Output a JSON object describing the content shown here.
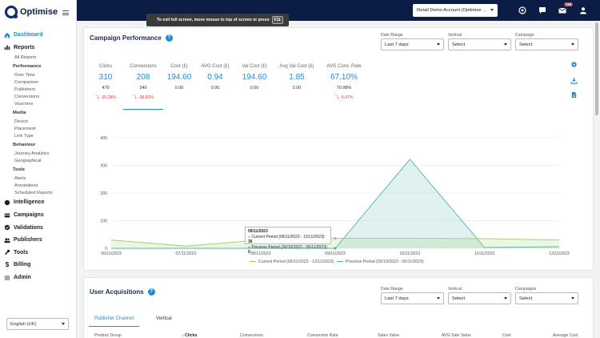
{
  "brand": {
    "name": "Optimise"
  },
  "sidebar": {
    "dashboard": "Dashboard",
    "reports": "Reports",
    "all_reports": "All Reports",
    "performance_head": "Performance",
    "performance": [
      "Over Time",
      "Comparison",
      "Publishers",
      "Conversions",
      "Vouchers"
    ],
    "media_head": "Media",
    "media": [
      "Device",
      "Placement",
      "Link Type"
    ],
    "behaviour_head": "Behaviour",
    "behaviour": [
      "Journey Analytics",
      "Geographical"
    ],
    "tools_head": "Tools",
    "tools": [
      "Alerts",
      "Annotations",
      "Scheduled Reports"
    ],
    "main": [
      "Intelligence",
      "Campaigns",
      "Validations",
      "Publishers",
      "Tools",
      "Billing",
      "Admin"
    ],
    "language": "English (UK)"
  },
  "topbar": {
    "fullscreen_msg": "To exit full screen, move mouse to top of screen or press",
    "fullscreen_key": "F11",
    "account": "Retail Demo Account (Optimise ...",
    "badge_count": "118"
  },
  "campaign": {
    "title": "Campaign Performance",
    "filters": [
      {
        "label": "Date Range",
        "value": "Last 7 days"
      },
      {
        "label": "Vertical",
        "value": "Select"
      },
      {
        "label": "Campaign",
        "value": "Select"
      }
    ],
    "metrics": [
      {
        "label": "Clicks",
        "value": "310",
        "prev": "479",
        "change": "-35.28%"
      },
      {
        "label": "Conversions",
        "value": "208",
        "prev": "340",
        "change": "-38.82%"
      },
      {
        "label": "Cost (£)",
        "value": "194.60",
        "prev": "0.00",
        "change": ""
      },
      {
        "label": "AVG Cost (£)",
        "value": "0.94",
        "prev": "0.00",
        "change": ""
      },
      {
        "label": "Val Cost (£)",
        "value": "194.60",
        "prev": "0.00",
        "change": ""
      },
      {
        "label": "Avg Val Cost (£)",
        "value": "1.85",
        "prev": "0.00",
        "change": ""
      },
      {
        "label": "AVG Conv. Rate",
        "value": "67.10%",
        "prev": "70.98%",
        "change": "-5.47%"
      }
    ]
  },
  "chart_data": {
    "type": "area",
    "x": [
      "06/11/2023",
      "07/11/2023",
      "08/11/2023",
      "09/11/2023",
      "10/11/2023",
      "11/11/2023",
      "12/11/2023"
    ],
    "ylim": [
      0,
      400
    ],
    "yticks": [
      "0",
      "100",
      "200",
      "300",
      "400"
    ],
    "series": [
      {
        "name": "Current Period (06/11/2023 - 12/11/2023)",
        "color": "#9ccc65",
        "values": [
          30,
          8,
          30,
          36,
          36,
          35,
          30
        ]
      },
      {
        "name": "Previous Period (30/10/2023 - 05/11/2023)",
        "color": "#4db6ac",
        "values": [
          0,
          0,
          0,
          0,
          322,
          3,
          6
        ]
      }
    ],
    "tooltip": {
      "date": "09/11/2023",
      "current_label": "Current Period (06/11/2023 - 12/11/2023):",
      "current_value": "36",
      "previous_label": "Previous Period (30/10/2023 - 05/11/2023):",
      "previous_value": "0"
    }
  },
  "acquisitions": {
    "title": "User Acquisitions",
    "filters": [
      {
        "label": "Date Range",
        "value": "Last 7 days"
      },
      {
        "label": "Vertical",
        "value": "Select"
      },
      {
        "label": "Campaigns",
        "value": "Select"
      }
    ],
    "tabs": [
      "Publisher Channel",
      "Vertical"
    ],
    "columns": [
      "Product Group",
      "Clicks",
      "Conversions",
      "Conversion Rate",
      "Sales Value",
      "AVG Sale Value",
      "Cost",
      "Average Cost"
    ]
  }
}
